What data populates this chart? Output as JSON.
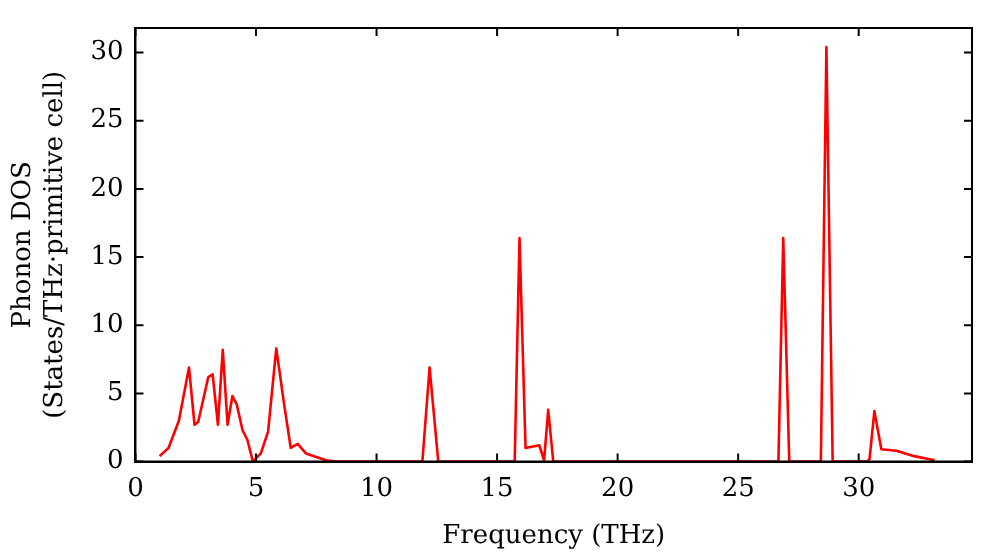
{
  "chart_data": {
    "type": "line",
    "xlabel": "Frequency (THz)",
    "ylabel": "Phonon DOS\n(States/THz·primitive cell)",
    "xlim": [
      0,
      34.7
    ],
    "ylim": [
      0,
      31.8
    ],
    "xticks": [
      0,
      5,
      10,
      15,
      20,
      25,
      30
    ],
    "yticks": [
      0,
      5,
      10,
      15,
      20,
      25,
      30
    ],
    "grid": false,
    "legend": false,
    "marker": "none",
    "line_style": "solid",
    "series": [
      {
        "color": "#ff0000",
        "x": [
          1,
          1.37,
          1.8,
          2.22,
          2.45,
          2.6,
          3.02,
          3.2,
          3.42,
          3.62,
          3.82,
          4.02,
          4.2,
          4.44,
          4.64,
          4.87,
          5.2,
          5.5,
          5.84,
          6.15,
          6.44,
          6.73,
          7.07,
          7.9,
          8.3,
          11.9,
          12.2,
          12.56,
          15.73,
          15.93,
          16.18,
          16.75,
          16.95,
          17.12,
          17.33,
          26.67,
          26.87,
          27.12,
          28.43,
          28.66,
          28.92,
          30.35,
          30.45,
          30.65,
          30.94,
          31.57,
          32.3,
          33.15
        ],
        "values": [
          0.4,
          1.0,
          3,
          6.9,
          2.7,
          2.9,
          6.2,
          6.4,
          2.7,
          8.2,
          2.7,
          4.8,
          4.2,
          2.3,
          1.6,
          0,
          0.6,
          2.2,
          8.3,
          4.4,
          1.0,
          1.3,
          0.6,
          0.1,
          0,
          0,
          6.9,
          0,
          0,
          16.4,
          1.0,
          1.2,
          0.1,
          3.8,
          0,
          0,
          16.4,
          0,
          0,
          30.4,
          0,
          0,
          0.2,
          3.7,
          0.9,
          0.8,
          0.4,
          0.1
        ]
      }
    ]
  }
}
